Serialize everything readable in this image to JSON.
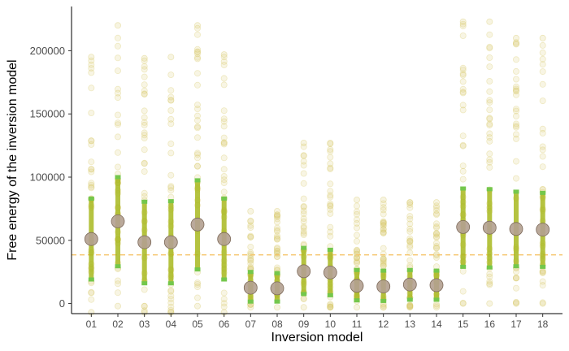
{
  "colors": {
    "background": "#ffffff",
    "axis": "#000000",
    "sample_points": "#d8c868",
    "median_bar": "#a8b820",
    "quantile_band": "#74c74c",
    "mean_marker": "#b3a090",
    "reference_line": "#f5c46a"
  },
  "chart_data": {
    "type": "scatter",
    "title": "",
    "xlabel": "Inversion model",
    "ylabel": "Free energy of the inversion model",
    "categories": [
      "01",
      "02",
      "03",
      "04",
      "05",
      "06",
      "07",
      "08",
      "09",
      "10",
      "11",
      "12",
      "13",
      "14",
      "15",
      "16",
      "17",
      "18"
    ],
    "ylim": [
      -8000,
      235000
    ],
    "yticks": [
      0,
      50000,
      100000,
      150000,
      200000
    ],
    "ytick_labels": [
      "0",
      "50000",
      "100000",
      "150000",
      "200000"
    ],
    "grid": false,
    "reference_line": {
      "y": 38500,
      "style": "dashed"
    },
    "series": [
      {
        "role": "mean",
        "values": [
          51000,
          65000,
          48500,
          48500,
          62500,
          51000,
          12500,
          12000,
          25500,
          24500,
          14000,
          13500,
          15000,
          14500,
          60500,
          60000,
          59000,
          58500
        ]
      },
      {
        "role": "upper_quantile",
        "values": [
          83000,
          100000,
          80500,
          81000,
          97500,
          83000,
          25000,
          24000,
          44000,
          42500,
          26500,
          26000,
          26500,
          26000,
          91000,
          90500,
          88500,
          87500
        ]
      },
      {
        "role": "lower_quantile",
        "values": [
          19000,
          29500,
          16000,
          16000,
          27000,
          19000,
          1500,
          1500,
          7500,
          6500,
          2500,
          2000,
          3000,
          3000,
          29000,
          28500,
          29500,
          29000
        ]
      },
      {
        "role": "sample_max",
        "values": [
          195000,
          220000,
          194000,
          195000,
          220000,
          197000,
          73000,
          73000,
          127000,
          127000,
          82000,
          82000,
          80000,
          80000,
          223000,
          223000,
          210000,
          210000
        ]
      },
      {
        "role": "sample_min",
        "values": [
          -7000,
          -2000,
          -7000,
          -7000,
          -2000,
          -7000,
          -3000,
          -3000,
          -3000,
          -3000,
          -3000,
          -3000,
          -3000,
          -3000,
          0,
          0,
          0,
          0
        ]
      }
    ]
  }
}
